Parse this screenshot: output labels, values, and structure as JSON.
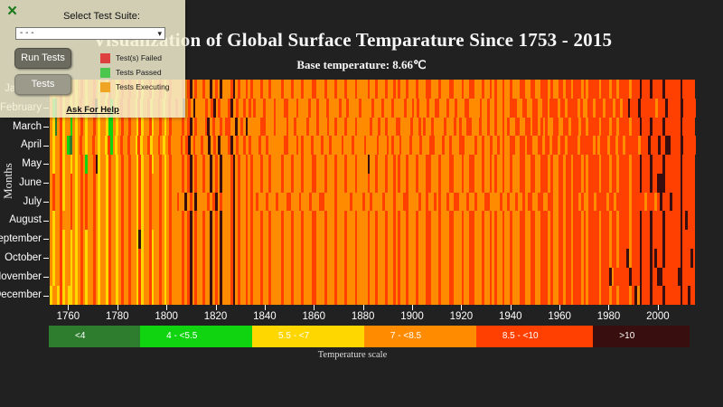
{
  "header": {
    "title": "Visualization of Global Surface Temparature Since 1753 - 2015",
    "subtitle": "Base temperature: 8.66℃"
  },
  "test_panel": {
    "close_icon": "×",
    "select_label": "Select Test Suite:",
    "dropdown_value": "- - -",
    "dropdown_chevron": "▾",
    "run_button": "Run Tests",
    "tests_button": "Tests",
    "status_legend": [
      {
        "label": "Test(s) Failed",
        "color": "#de4040"
      },
      {
        "label": "Tests Passed",
        "color": "#4cc64c"
      },
      {
        "label": "Tests Executing",
        "color": "#f0a424"
      }
    ],
    "help_link": "Ask For Help"
  },
  "chart_data": {
    "type": "heatmap",
    "title": "Visualization of Global Surface Temparature Since 1753 - 2015",
    "base_temperature": 8.66,
    "ylabel": "Months",
    "x_range": [
      1753,
      2015
    ],
    "x_ticks": [
      1760,
      1780,
      1800,
      1820,
      1840,
      1860,
      1880,
      1900,
      1920,
      1940,
      1960,
      1980,
      2000
    ],
    "months": [
      "January",
      "February",
      "March",
      "April",
      "May",
      "June",
      "July",
      "August",
      "September",
      "October",
      "November",
      "December"
    ],
    "legend_caption": "Temperature scale",
    "legend": [
      {
        "label": "<4",
        "color": "#2e7d2e"
      },
      {
        "label": "4 - <5.5",
        "color": "#11d411"
      },
      {
        "label": "5.5 - <7",
        "color": "#ffd700"
      },
      {
        "label": "7 - <8.5",
        "color": "#ff8c00"
      },
      {
        "label": "8.5 - <10",
        "color": "#ff4000"
      },
      {
        "label": ">10",
        "color": "#390e0e"
      }
    ],
    "palette": {
      "0": "#2e7d2e",
      "1": "#11d411",
      "2": "#ffd700",
      "3": "#ff8c00",
      "4": "#ff4000",
      "5": "#390e0e"
    },
    "rows": [
      {
        "month": "January",
        "cells": "32334233232343233432332433234334332423342334323433334345343343353435333453433434333433433334333433343334433343334333433343333433433343343433433343334433343334433343344333433434334334333443344334443433443443444343444434443443444434445444544445444444544444"
      },
      {
        "month": "February",
        "cells": "31034233232343233452332413234334332423342334323433433534353333434534333453433434343334333433344333433334334333433334334333343333433343334333343343433343344333433433344333343343343343344433443344334434443443444434334434443444344344544454444443444544444544444"
      },
      {
        "month": "March",
        "cells": "32034233132343233432332113234334332423342334323433334345343334534334344335343533333443334333343343333433343334334333433343333343343343334433334334343343333433343433443334334334334343344334434434343344334434443443444434443443444434445444544445444444544444"
      },
      {
        "month": "April",
        "cells": "32334231032343233432332413234334332423342334323433334345343343353435333453433434333433433333344333434333433343343333433343333433334333434334333433343334433343343334433334334334334343344334434433443443443443444434444434344434434434444434445444544554444544444"
      },
      {
        "month": "May",
        "cells": "32334233232343133452332433234334332423342334323433334345343343353435333453433434333433433334333433343334433343334333433343333533433343343433433343334433343334433343344333433434334334333443344334443433443443444343444434443443444434445444544445444444544444"
      },
      {
        "month": "June",
        "cells": "34334233432343433432332433234334332423343334323433334345343343353435333453433434333433433334333433343334433343334333433343333433433343343433433343334433343334433343344333433434334334333443344334443433443443444343444434443443444434445444544555444444544444"
      },
      {
        "month": "July",
        "cells": "34334233432343433432332433234334332423343334323433433534353333434534333453433434343334333433344333433343334433334333334333343343333433343334433334334334343343344333433433344333343343343343443344334433443443443433443444434434444434444434443454445444544444"
      },
      {
        "month": "August",
        "cells": "32334333432343433432332433234334332423343334323433334345343343353435333453433434333433433334333433343334433343334333433343333433433343343433433343334433343334433343344333433434334334333443344334443433443443444343444434443443444434445444544445444444545444"
      },
      {
        "month": "September",
        "cells": "32334233232343233432332433234334332523342334323433334345343343353435333453433434333433433334333433343334433343334333433343333433433343343433433343334433343334433343344333433434334334333443344334443433443443444343444434443443444434445444544445444444544444"
      },
      {
        "month": "October",
        "cells": "32334233232343233432332433234334332423342334323433334345343343353435333453433434333433433334333433343334433343334333433343333433433343343433433343334433343334433343344333433434334334333443344334443433443443444343444434443443444534445444545445444444544454"
      },
      {
        "month": "November",
        "cells": "32334233232343233432332433234334332423342334323433334345343343353435333453433434333433433334333433343334433343334333433343333433433343343433433343334433343334433343344333433434334334333443344334443433443443444343444434445344444454445444544554444445544444"
      },
      {
        "month": "December",
        "cells": "23324232232343233432332433234334332423342334323433334345343343353435333453433434333433433334333433343334433343334333433343333433433343343433433343334433343334433343344333433434334334333443344334443433443443444343444434443443444434535444544445444444544544"
      }
    ]
  }
}
